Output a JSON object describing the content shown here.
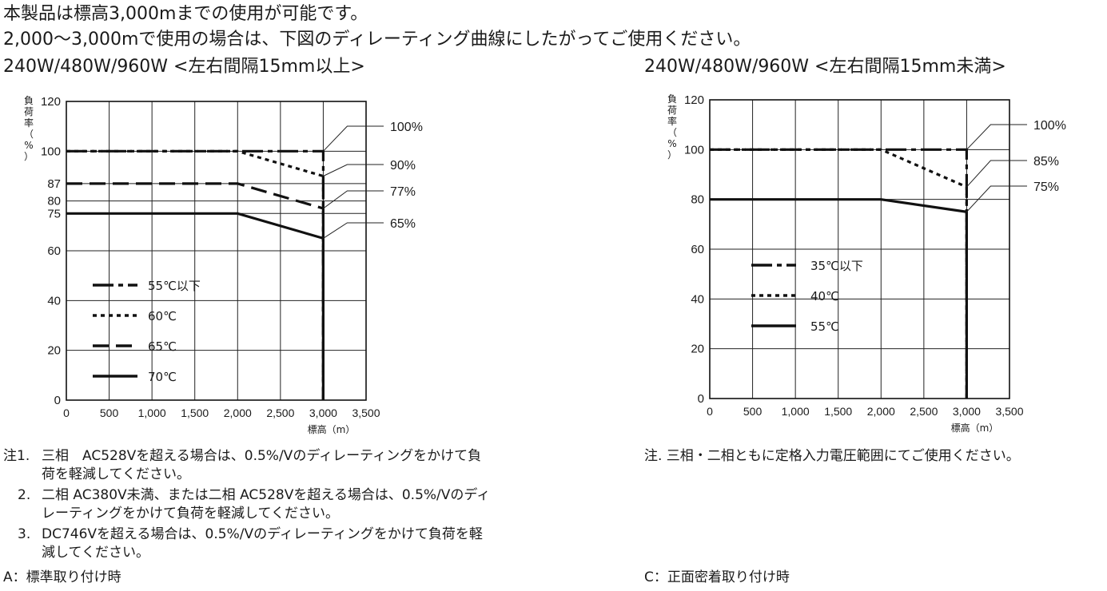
{
  "header": {
    "line1": "本製品は標高3,000mまでの使用が可能です。",
    "line2": "2,000〜3,000mで使用の場合は、下図のディレーティング曲線にしたがってご使用ください。"
  },
  "chart_data": [
    {
      "type": "line",
      "title": "240W/480W/960W <左右間隔15mm以上>",
      "xlabel": "標高（m）",
      "ylabel": [
        "負",
        "荷",
        "率",
        "（",
        "%",
        "）"
      ],
      "xlim": [
        0,
        3500
      ],
      "ylim": [
        0,
        120
      ],
      "xticks": [
        0,
        500,
        1000,
        1500,
        2000,
        2500,
        3000,
        3500
      ],
      "xtick_labels": [
        "0",
        "500",
        "1,000",
        "1,500",
        "2,000",
        "2,500",
        "3,000",
        "3,500"
      ],
      "yticks": [
        0,
        20,
        40,
        60,
        75,
        80,
        87,
        100,
        120
      ],
      "ytick_labels": [
        "0",
        "20",
        "40",
        "60",
        "75",
        "80",
        "87",
        "100",
        "120"
      ],
      "grid": true,
      "series": [
        {
          "name": "55℃以下",
          "style": "dashdot",
          "x": [
            0,
            2000,
            3000,
            3000
          ],
          "y": [
            100,
            100,
            100,
            0
          ]
        },
        {
          "name": "60℃",
          "style": "dotted",
          "x": [
            0,
            2000,
            3000,
            3000
          ],
          "y": [
            100,
            100,
            90,
            0
          ]
        },
        {
          "name": "65℃",
          "style": "dashed",
          "x": [
            0,
            2000,
            3000,
            3000
          ],
          "y": [
            87,
            87,
            77,
            0
          ]
        },
        {
          "name": "70℃",
          "style": "solid",
          "x": [
            0,
            2000,
            3000,
            3000
          ],
          "y": [
            75,
            75,
            65,
            0
          ]
        }
      ],
      "annotations": [
        {
          "text": "100%",
          "x": 3000,
          "y": 100
        },
        {
          "text": "90%",
          "x": 3000,
          "y": 90
        },
        {
          "text": "77%",
          "x": 3000,
          "y": 77
        },
        {
          "text": "65%",
          "x": 3000,
          "y": 65
        }
      ],
      "legend": "left"
    },
    {
      "type": "line",
      "title": "240W/480W/960W <左右間隔15mm未満>",
      "xlabel": "標高（m）",
      "ylabel": [
        "負",
        "荷",
        "率",
        "（",
        "%",
        "）"
      ],
      "xlim": [
        0,
        3500
      ],
      "ylim": [
        0,
        120
      ],
      "xticks": [
        0,
        500,
        1000,
        1500,
        2000,
        2500,
        3000,
        3500
      ],
      "xtick_labels": [
        "0",
        "500",
        "1,000",
        "1,500",
        "2,000",
        "2,500",
        "3,000",
        "3,500"
      ],
      "yticks": [
        0,
        20,
        40,
        60,
        80,
        100,
        120
      ],
      "ytick_labels": [
        "0",
        "20",
        "40",
        "60",
        "80",
        "100",
        "120"
      ],
      "grid": true,
      "series": [
        {
          "name": "35℃以下",
          "style": "dashdot",
          "x": [
            0,
            2000,
            3000,
            3000
          ],
          "y": [
            100,
            100,
            100,
            0
          ]
        },
        {
          "name": "40℃",
          "style": "dotted",
          "x": [
            0,
            2000,
            3000,
            3000
          ],
          "y": [
            100,
            100,
            85,
            0
          ]
        },
        {
          "name": "55℃",
          "style": "solid",
          "x": [
            0,
            2000,
            3000,
            3000
          ],
          "y": [
            80,
            80,
            75,
            0
          ]
        }
      ],
      "annotations": [
        {
          "text": "100%",
          "x": 3000,
          "y": 100
        },
        {
          "text": "85%",
          "x": 3000,
          "y": 85
        },
        {
          "text": "75%",
          "x": 3000,
          "y": 75
        }
      ],
      "legend": "left"
    }
  ],
  "notes_left": [
    {
      "label": "注1.",
      "lines": [
        "三相　AC528Vを超える場合は、0.5%/Vのディレーティングをかけて負",
        "荷を軽減してください。"
      ]
    },
    {
      "label": "2.",
      "lines": [
        "二相 AC380V未満、または二相 AC528Vを超える場合は、0.5%/Vのディ",
        "レーティングをかけて負荷を軽減してください。"
      ]
    },
    {
      "label": "3.",
      "lines": [
        "DC746Vを超える場合は、0.5%/Vのディレーティングをかけて負荷を軽",
        "減してください。"
      ]
    }
  ],
  "note_right": "注. 三相・二相ともに定格入力電圧範囲にてご使用ください。",
  "footer": {
    "left": "A：標準取り付け時",
    "right": "C：正面密着取り付け時"
  }
}
